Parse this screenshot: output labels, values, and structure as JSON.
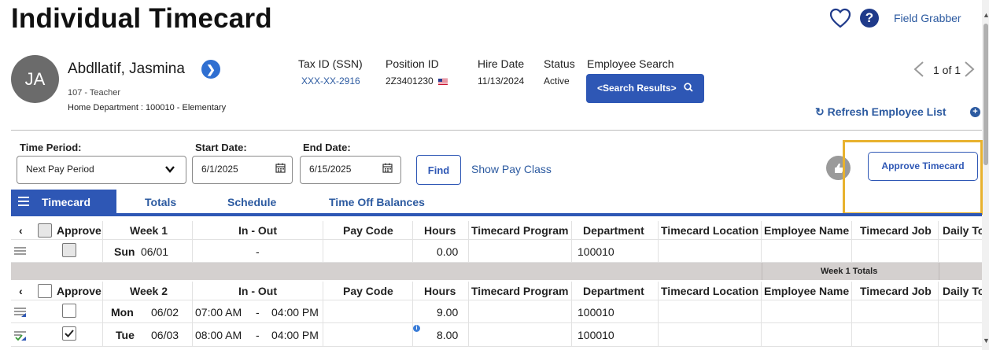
{
  "header": {
    "title": "Individual Timecard",
    "field_grabber": "Field Grabber",
    "help": "?"
  },
  "employee": {
    "initials": "JA",
    "name": "Abdllatif, Jasmina",
    "job": "107 - Teacher",
    "home_department": "Home Department : 100010 - Elementary",
    "tax_id_label": "Tax ID (SSN)",
    "tax_id_value": "XXX-XX-2916",
    "position_id_label": "Position ID",
    "position_id_value": "2Z3401230",
    "hire_date_label": "Hire Date",
    "hire_date_value": "11/13/2024",
    "status_label": "Status",
    "status_value": "Active",
    "search_label": "Employee Search",
    "search_button": "<Search Results>"
  },
  "pager": {
    "text": "1 of 1"
  },
  "refresh_label": "Refresh Employee List",
  "filters": {
    "time_period_label": "Time Period:",
    "time_period_value": "Next Pay Period",
    "start_date_label": "Start Date:",
    "start_date_value": "6/1/2025",
    "end_date_label": "End Date:",
    "end_date_value": "6/15/2025",
    "find_button": "Find",
    "show_pay_class": "Show Pay Class",
    "approve_timecard": "Approve Timecard"
  },
  "tabs": [
    {
      "label": "Timecard",
      "active": true
    },
    {
      "label": "Totals"
    },
    {
      "label": "Schedule"
    },
    {
      "label": "Time Off Balances"
    }
  ],
  "columns": {
    "approve": "Approve",
    "in_out": "In - Out",
    "pay_code": "Pay Code",
    "hours": "Hours",
    "timecard_program": "Timecard Program",
    "department": "Department",
    "timecard_location": "Timecard Location",
    "employee_name": "Employee Name",
    "timecard_job": "Timecard Job",
    "daily_total": "Daily To"
  },
  "week1": {
    "label": "Week 1",
    "rows": [
      {
        "day": "Sun",
        "date": "06/01",
        "in_out": "-",
        "hours": "0.00",
        "department": "100010",
        "checked": false
      }
    ],
    "totals_label": "Week 1 Totals"
  },
  "week2": {
    "label": "Week 2",
    "rows": [
      {
        "day": "Mon",
        "date": "06/02",
        "time_in": "07:00 AM",
        "dash": "-",
        "time_out": "04:00 PM",
        "hours": "9.00",
        "department": "100010",
        "checked": false
      },
      {
        "day": "Tue",
        "date": "06/03",
        "time_in": "08:00 AM",
        "dash": "-",
        "time_out": "04:00 PM",
        "hours": "8.00",
        "department": "100010",
        "checked": true
      }
    ]
  },
  "colors": {
    "primary": "#2e57b5",
    "link": "#2c5aa0",
    "highlight": "#e8b22e",
    "totals_band": "#d4d0cf"
  }
}
